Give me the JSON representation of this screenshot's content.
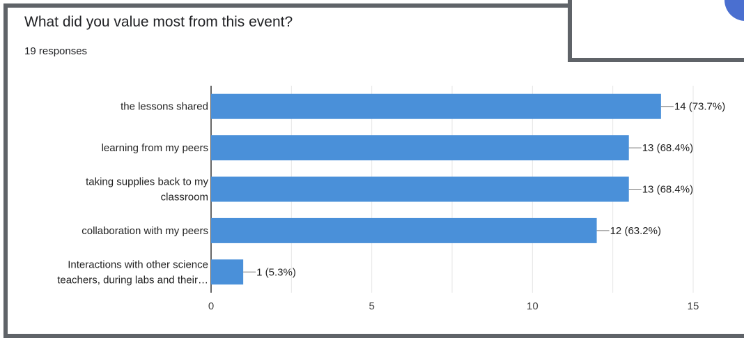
{
  "header": {
    "title": "What did you value most from this event?",
    "responses": "19 responses"
  },
  "colors": {
    "bar": "#4a90d9",
    "frame": "#5f6368",
    "grid": "#e6e6e6",
    "overlay_circle": "#4a6fd0"
  },
  "chart_data": {
    "type": "bar",
    "orientation": "horizontal",
    "categories": [
      [
        "the lessons shared"
      ],
      [
        "learning from my peers"
      ],
      [
        "taking supplies back to my",
        "classroom"
      ],
      [
        "collaboration with my peers"
      ],
      [
        "Interactions with other science",
        "teachers, during labs and their…"
      ]
    ],
    "values": [
      14,
      13,
      13,
      12,
      1
    ],
    "value_labels": [
      "14 (73.7%)",
      "13 (68.4%)",
      "13 (68.4%)",
      "12 (63.2%)",
      "1 (5.3%)"
    ],
    "xlim": [
      0,
      15
    ],
    "xticks": [
      0,
      5,
      10,
      15
    ],
    "grid": true
  }
}
